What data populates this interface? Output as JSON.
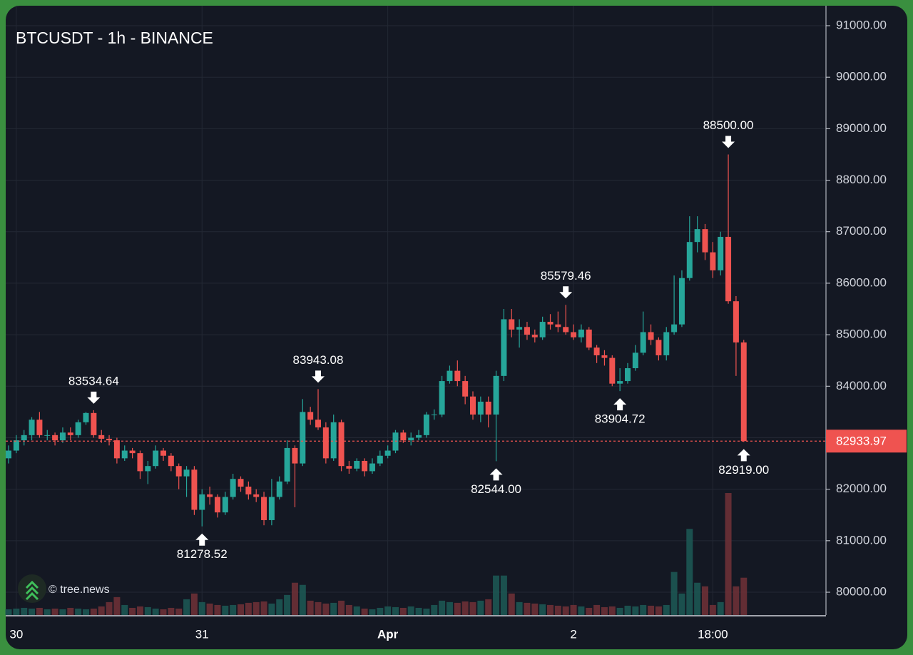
{
  "chart_data": {
    "type": "candlestick",
    "title": "BTCUSDT - 1h - BINANCE",
    "watermark": "© tree.news",
    "up_color": "#26a69a",
    "down_color": "#ef5350",
    "grid": true,
    "ylim": [
      79557,
      91388
    ],
    "yticks": [
      {
        "value": 80000,
        "label": "80000.00"
      },
      {
        "value": 81000,
        "label": "81000.00"
      },
      {
        "value": 82000,
        "label": "82000.00"
      },
      {
        "value": 83000,
        "label": "83000.00"
      },
      {
        "value": 84000,
        "label": "84000.00"
      },
      {
        "value": 85000,
        "label": "85000.00"
      },
      {
        "value": 86000,
        "label": "86000.00"
      },
      {
        "value": 87000,
        "label": "87000.00"
      },
      {
        "value": 88000,
        "label": "88000.00"
      },
      {
        "value": 89000,
        "label": "89000.00"
      },
      {
        "value": 90000,
        "label": "90000.00"
      },
      {
        "value": 91000,
        "label": "91000.00"
      }
    ],
    "xticks": [
      {
        "value": 1,
        "label": "30"
      },
      {
        "value": 25,
        "label": "31"
      },
      {
        "value": 49,
        "label": "Apr"
      },
      {
        "value": 73,
        "label": "2"
      },
      {
        "value": 91,
        "label": "18:00"
      }
    ],
    "open": [
      82600,
      82750,
      82950,
      83050,
      83350,
      83050,
      83050,
      82950,
      83100,
      83050,
      83300,
      83480,
      83050,
      82980,
      82950,
      82600,
      82750,
      82700,
      82350,
      82450,
      82750,
      82650,
      82450,
      82250,
      82380,
      81600,
      81900,
      81850,
      81550,
      81850,
      82200,
      82050,
      81900,
      81850,
      81400,
      81850,
      82150,
      82800,
      82500,
      83500,
      83350,
      83200,
      82600,
      83300,
      82450,
      82400,
      82550,
      82350,
      82500,
      82650,
      82750,
      83100,
      82950,
      83000,
      83050,
      83450,
      83450,
      84100,
      84300,
      84100,
      83800,
      83450,
      83700,
      83450,
      84200,
      85300,
      85100,
      85150,
      85000,
      84950,
      85250,
      85200,
      85150,
      85050,
      84950,
      85100,
      84750,
      84600,
      84550,
      84050,
      84100,
      84350,
      84650,
      85050,
      84900,
      84600,
      85050,
      85200,
      86100,
      86800,
      87050,
      86600,
      86250,
      86900,
      85650,
      84850
    ],
    "high": [
      82850,
      83050,
      83150,
      83400,
      83500,
      83150,
      83100,
      83200,
      83200,
      83350,
      83500,
      83534.64,
      83150,
      83050,
      83000,
      82850,
      82800,
      82750,
      82550,
      82850,
      82800,
      82700,
      82500,
      82450,
      82450,
      82000,
      82050,
      81900,
      81950,
      82300,
      82250,
      82150,
      82000,
      81950,
      82200,
      82250,
      82950,
      82850,
      83750,
      83600,
      83943.08,
      83300,
      83450,
      83350,
      82550,
      82600,
      82600,
      82600,
      82750,
      82850,
      83150,
      83150,
      83100,
      83150,
      83500,
      83550,
      84200,
      84400,
      84500,
      84200,
      83900,
      83800,
      83800,
      84300,
      85500,
      85500,
      85300,
      85250,
      85100,
      85350,
      85400,
      85450,
      85579.46,
      85200,
      85200,
      85150,
      84800,
      84700,
      84600,
      84350,
      84450,
      84800,
      85450,
      85200,
      84950,
      85150,
      86150,
      86250,
      87300,
      87300,
      87150,
      86800,
      87000,
      88500,
      85750,
      84900
    ],
    "low": [
      82500,
      82700,
      82850,
      82950,
      83000,
      82950,
      82850,
      82900,
      82950,
      83000,
      83250,
      83000,
      82900,
      82850,
      82500,
      82550,
      82600,
      82200,
      82100,
      82400,
      82550,
      82350,
      82000,
      81850,
      81500,
      81278.52,
      81700,
      81450,
      81500,
      81800,
      81950,
      81800,
      81750,
      81300,
      81300,
      81800,
      82100,
      81650,
      82450,
      83250,
      83150,
      82500,
      82550,
      82350,
      82300,
      82350,
      82250,
      82300,
      82450,
      82600,
      82700,
      82900,
      82850,
      82950,
      83000,
      83350,
      83400,
      84050,
      84000,
      83650,
      83350,
      83300,
      83200,
      82544,
      84100,
      84950,
      84750,
      84900,
      84850,
      84900,
      85100,
      85050,
      85000,
      84900,
      84850,
      84700,
      84450,
      84400,
      84000,
      83904.72,
      84050,
      84300,
      84600,
      84800,
      84500,
      84500,
      85000,
      85150,
      86050,
      86600,
      86450,
      86100,
      86150,
      85600,
      84200,
      82919
    ],
    "close": [
      82750,
      82950,
      83050,
      83350,
      83050,
      83050,
      82950,
      83100,
      83050,
      83300,
      83480,
      83050,
      82980,
      82950,
      82600,
      82750,
      82700,
      82350,
      82450,
      82750,
      82650,
      82450,
      82250,
      82380,
      81600,
      81900,
      81850,
      81550,
      81850,
      82200,
      82050,
      81900,
      81850,
      81400,
      81850,
      82150,
      82800,
      82500,
      83500,
      83350,
      83200,
      82600,
      83300,
      82450,
      82400,
      82550,
      82350,
      82500,
      82650,
      82750,
      83100,
      82950,
      83000,
      83050,
      83450,
      83450,
      84100,
      84300,
      84100,
      83800,
      83450,
      83700,
      83450,
      84200,
      85300,
      85100,
      85150,
      85000,
      84950,
      85250,
      85200,
      85150,
      85050,
      84950,
      85100,
      84750,
      84600,
      84550,
      84050,
      84100,
      84350,
      84650,
      85050,
      84900,
      84600,
      85050,
      85200,
      86100,
      86800,
      87050,
      86600,
      86250,
      86900,
      85650,
      84850,
      82933.97
    ],
    "volume": [
      8,
      9,
      10,
      9,
      10,
      8,
      9,
      8,
      10,
      9,
      8,
      9,
      12,
      18,
      25,
      14,
      10,
      12,
      11,
      9,
      8,
      10,
      9,
      22,
      30,
      18,
      16,
      14,
      13,
      14,
      15,
      17,
      18,
      19,
      16,
      22,
      28,
      45,
      42,
      20,
      18,
      16,
      17,
      20,
      14,
      12,
      9,
      8,
      10,
      12,
      11,
      10,
      12,
      10,
      9,
      14,
      20,
      18,
      17,
      19,
      18,
      20,
      22,
      55,
      55,
      30,
      18,
      17,
      16,
      15,
      14,
      13,
      12,
      14,
      12,
      10,
      14,
      11,
      12,
      10,
      13,
      12,
      14,
      13,
      12,
      14,
      60,
      30,
      120,
      45,
      40,
      14,
      18,
      170,
      40,
      52
    ],
    "annotations": [
      {
        "value": 83534.64,
        "label": "83534.64"
      },
      {
        "value": 81278.52,
        "label": "81278.52"
      },
      {
        "value": 83943.08,
        "label": "83943.08"
      },
      {
        "value": 82544,
        "label": "82544.00"
      },
      {
        "value": 85579.46,
        "label": "85579.46"
      },
      {
        "value": 83904.72,
        "label": "83904.72"
      },
      {
        "value": 88500,
        "label": "88500.00"
      },
      {
        "value": 82919,
        "label": "82919.00"
      }
    ],
    "last_price": {
      "value": 82933.97,
      "label": "82933.97"
    }
  }
}
